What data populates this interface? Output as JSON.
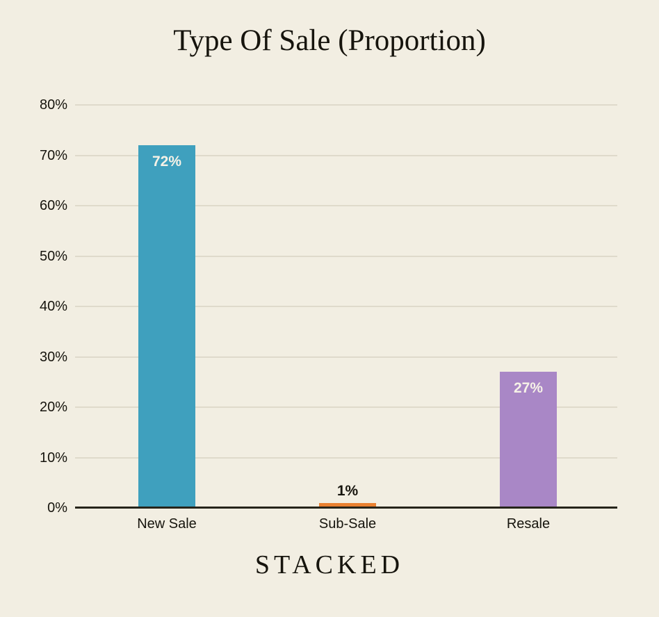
{
  "header": {
    "title": "Type Of Sale (Proportion)"
  },
  "footer": {
    "logo": "STACKED"
  },
  "colors": {
    "background": "#F2EEE2",
    "gridline": "#DFDACB",
    "axis": "#26241A",
    "text": "#16140D",
    "bar_label_light": "#F6F2E7",
    "new_sale": "#3FA0BE",
    "sub_sale": "#E98030",
    "resale": "#A987C6"
  },
  "chart_data": {
    "type": "bar",
    "title": "Type Of Sale (Proportion)",
    "categories": [
      "New Sale",
      "Sub-Sale",
      "Resale"
    ],
    "values": [
      72,
      1,
      27
    ],
    "bar_labels": [
      "72%",
      "1%",
      "27%"
    ],
    "bar_colors": [
      "#3FA0BE",
      "#E98030",
      "#A987C6"
    ],
    "bar_label_placement": [
      "inside",
      "above",
      "inside"
    ],
    "ylim": [
      0,
      80
    ],
    "ytick_labels": [
      "0%",
      "10%",
      "20%",
      "30%",
      "40%",
      "50%",
      "60%",
      "70%",
      "80%"
    ],
    "ytick_values": [
      0,
      10,
      20,
      30,
      40,
      50,
      60,
      70,
      80
    ],
    "grid": true,
    "legend": "none",
    "xlabel": "",
    "ylabel": ""
  }
}
